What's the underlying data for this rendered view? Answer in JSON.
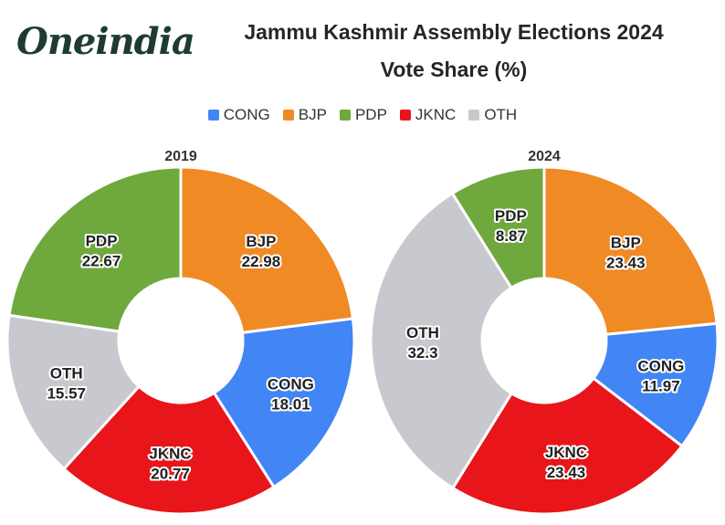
{
  "brand": {
    "logo_text": "Oneindia"
  },
  "header": {
    "title": "Jammu Kashmir Assembly Elections 2024",
    "subtitle": "Vote Share (%)"
  },
  "legend": [
    {
      "label": "CONG",
      "color": "#4285f4"
    },
    {
      "label": "BJP",
      "color": "#f08a24"
    },
    {
      "label": "PDP",
      "color": "#6fa83c"
    },
    {
      "label": "JKNC",
      "color": "#e8151b"
    },
    {
      "label": "OTH",
      "color": "#c8c9ce"
    }
  ],
  "chart_data": [
    {
      "type": "pie",
      "title": "2019",
      "slices": [
        {
          "label": "BJP",
          "value": 22.98,
          "color": "#f08a24"
        },
        {
          "label": "CONG",
          "value": 18.01,
          "color": "#4285f4"
        },
        {
          "label": "JKNC",
          "value": 20.77,
          "color": "#e8151b"
        },
        {
          "label": "OTH",
          "value": 15.57,
          "color": "#c8c9ce"
        },
        {
          "label": "PDP",
          "value": 22.67,
          "color": "#6fa83c"
        }
      ]
    },
    {
      "type": "pie",
      "title": "2024",
      "slices": [
        {
          "label": "BJP",
          "value": 23.43,
          "color": "#f08a24"
        },
        {
          "label": "CONG",
          "value": 11.97,
          "color": "#4285f4"
        },
        {
          "label": "JKNC",
          "value": 23.43,
          "color": "#e8151b"
        },
        {
          "label": "OTH",
          "value": 32.3,
          "color": "#c8c9ce"
        },
        {
          "label": "PDP",
          "value": 8.87,
          "color": "#6fa83c"
        }
      ]
    }
  ]
}
